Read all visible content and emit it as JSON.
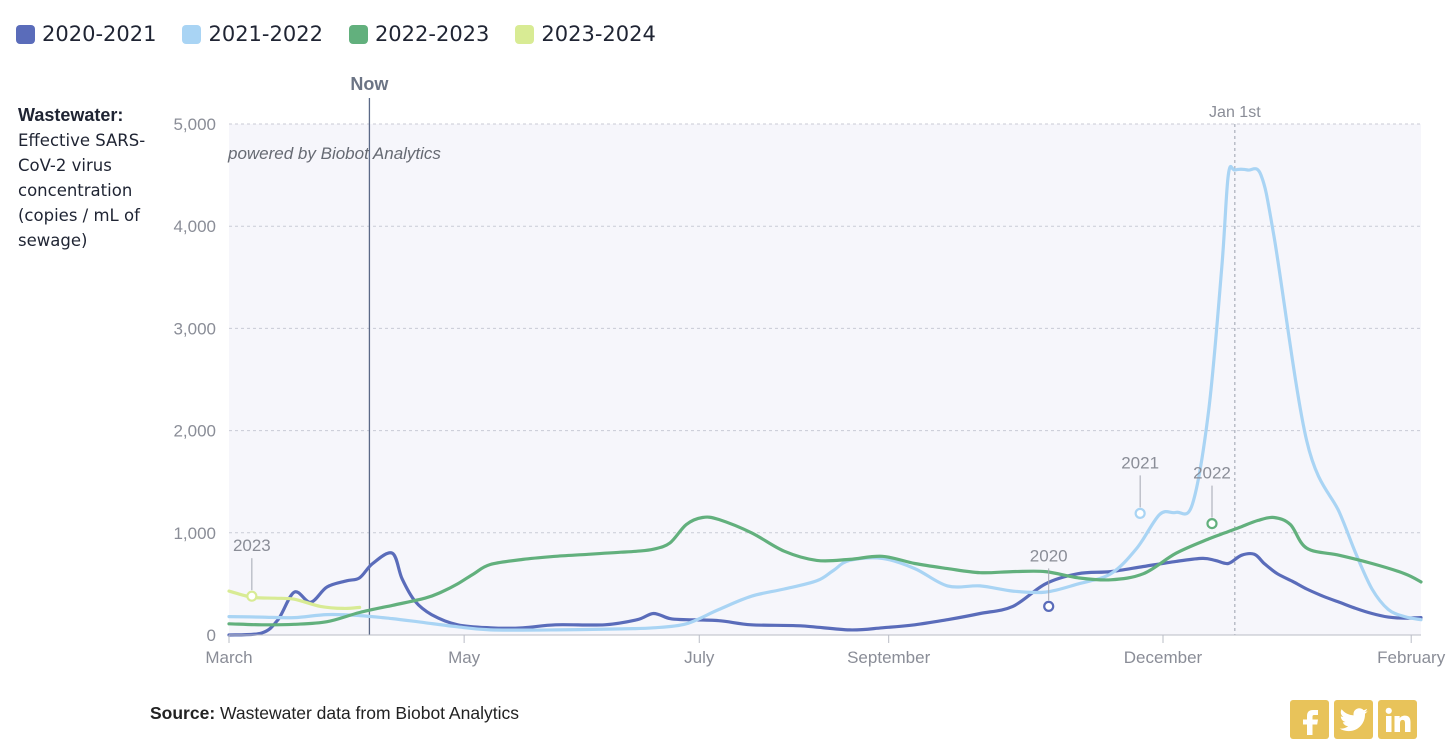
{
  "legend": [
    {
      "label": "2020-2021",
      "color": "#5a6cba"
    },
    {
      "label": "2021-2022",
      "color": "#a9d4f4"
    },
    {
      "label": "2022-2023",
      "color": "#62b07d"
    },
    {
      "label": "2023-2024",
      "color": "#d8eb94"
    }
  ],
  "y_axis_label": {
    "bold": "Wastewater:",
    "text": "Effective SARS-CoV-2 virus concentration (copies / mL of sewage)"
  },
  "watermark": "powered by Biobot Analytics",
  "source": {
    "bold": "Source:",
    "text": "Wastewater data from Biobot Analytics"
  },
  "share_icons": [
    "facebook-icon",
    "twitter-icon",
    "linkedin-icon"
  ],
  "chart_data": {
    "type": "line",
    "title": "",
    "xlabel": "",
    "ylabel": "Effective SARS-CoV-2 virus concentration (copies / mL of sewage)",
    "x_unit": "days since March 1",
    "xlim": [
      0,
      365
    ],
    "ylim": [
      0,
      5000
    ],
    "yticks": [
      0,
      1000,
      2000,
      3000,
      4000,
      5000
    ],
    "ytick_labels": [
      "0",
      "1,000",
      "2,000",
      "3,000",
      "4,000",
      "5,000"
    ],
    "xticks": [
      0,
      72,
      144,
      202,
      286,
      362
    ],
    "xtick_labels": [
      "March",
      "May",
      "July",
      "September",
      "December",
      "February"
    ],
    "markers": [
      {
        "label": "Now",
        "x": 43,
        "style": "solid"
      },
      {
        "label": "Jan 1st",
        "x": 308,
        "style": "dashed"
      }
    ],
    "series": [
      {
        "name": "2020-2021",
        "color": "#5a6cba",
        "x": [
          0,
          10,
          15,
          20,
          25,
          30,
          36,
          40,
          44,
          50,
          53,
          57,
          62,
          70,
          80,
          90,
          100,
          115,
          125,
          130,
          135,
          140,
          150,
          160,
          175,
          190,
          200,
          210,
          220,
          230,
          240,
          250,
          260,
          270,
          280,
          290,
          298,
          302,
          306,
          310,
          314,
          317,
          321,
          326,
          330,
          335,
          340,
          345,
          350,
          355,
          360,
          365
        ],
        "y": [
          0,
          20,
          150,
          420,
          320,
          470,
          530,
          560,
          700,
          800,
          550,
          330,
          200,
          100,
          70,
          70,
          100,
          100,
          150,
          210,
          160,
          150,
          140,
          100,
          90,
          50,
          70,
          100,
          150,
          210,
          280,
          500,
          600,
          620,
          670,
          720,
          750,
          730,
          700,
          780,
          790,
          700,
          600,
          520,
          450,
          380,
          320,
          260,
          210,
          175,
          165,
          170
        ],
        "annotation": {
          "label": "2020",
          "x": 251,
          "y": 280
        }
      },
      {
        "name": "2021-2022",
        "color": "#a9d4f4",
        "x": [
          0,
          10,
          20,
          30,
          40,
          50,
          60,
          70,
          80,
          100,
          120,
          130,
          140,
          150,
          160,
          170,
          180,
          185,
          190,
          200,
          210,
          220,
          230,
          240,
          250,
          260,
          270,
          278,
          285,
          290,
          295,
          300,
          304,
          306,
          308,
          312,
          316,
          320,
          330,
          340,
          345,
          350,
          355,
          360,
          365
        ],
        "y": [
          180,
          175,
          170,
          200,
          190,
          160,
          120,
          80,
          50,
          50,
          60,
          70,
          110,
          250,
          380,
          450,
          530,
          630,
          730,
          750,
          650,
          480,
          480,
          430,
          420,
          500,
          600,
          850,
          1180,
          1200,
          1280,
          2200,
          3600,
          4500,
          4550,
          4550,
          4500,
          3900,
          1900,
          1200,
          800,
          450,
          250,
          180,
          150
        ],
        "annotation": {
          "label": "2021",
          "x": 279,
          "y": 1190
        }
      },
      {
        "name": "2022-2023",
        "color": "#62b07d",
        "x": [
          0,
          10,
          20,
          30,
          40,
          50,
          60,
          65,
          70,
          75,
          80,
          90,
          100,
          110,
          115,
          120,
          125,
          130,
          135,
          140,
          145,
          150,
          160,
          170,
          180,
          190,
          200,
          210,
          220,
          230,
          240,
          250,
          260,
          270,
          280,
          290,
          300,
          305,
          310,
          315,
          320,
          325,
          330,
          340,
          350,
          360,
          365
        ],
        "y": [
          110,
          100,
          105,
          130,
          220,
          290,
          360,
          420,
          500,
          600,
          690,
          740,
          770,
          790,
          800,
          810,
          820,
          840,
          900,
          1080,
          1150,
          1130,
          1000,
          820,
          730,
          740,
          770,
          700,
          650,
          610,
          620,
          620,
          560,
          540,
          600,
          800,
          940,
          1000,
          1060,
          1120,
          1150,
          1080,
          850,
          780,
          700,
          600,
          520
        ],
        "annotation": {
          "label": "2022",
          "x": 301,
          "y": 1090
        }
      },
      {
        "name": "2023-2024",
        "color": "#d8eb94",
        "x": [
          0,
          7,
          14,
          20,
          28,
          35,
          40
        ],
        "y": [
          430,
          370,
          360,
          350,
          280,
          260,
          270
        ],
        "annotation": {
          "label": "2023",
          "x": 7,
          "y": 380
        }
      }
    ]
  }
}
